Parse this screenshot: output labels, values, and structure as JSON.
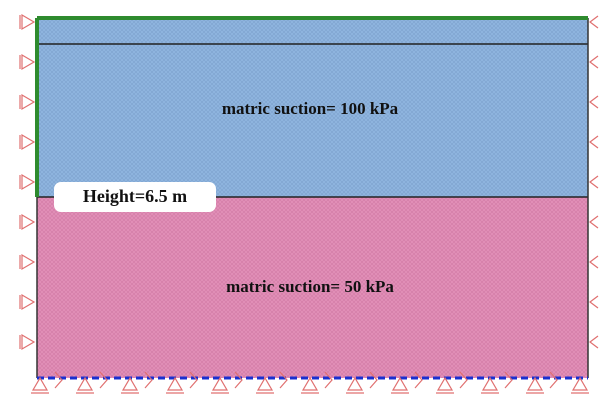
{
  "layers": [
    {
      "label": "matric suction= 100 kPa"
    },
    {
      "label": "matric suction= 50 kPa"
    }
  ],
  "annotation": {
    "label": "Height=6.5 m"
  }
}
